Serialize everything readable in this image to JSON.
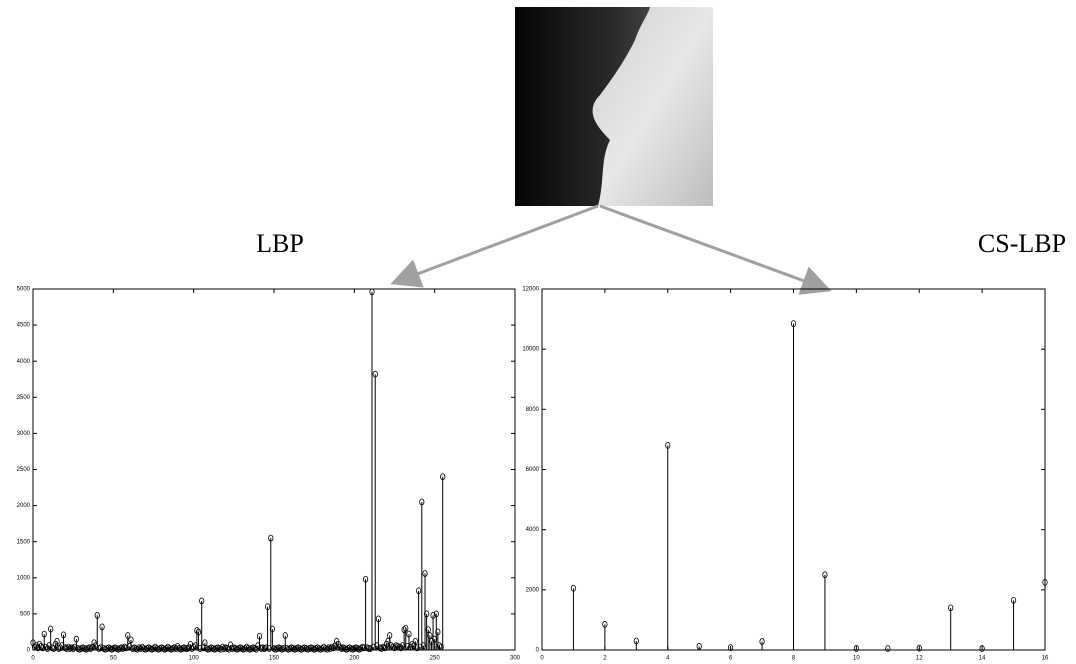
{
  "chart_data": [
    {
      "type": "stem",
      "title": "LBP",
      "color": "#000000",
      "x": [
        0,
        1,
        2,
        3,
        4,
        5,
        6,
        7,
        8,
        9,
        10,
        11,
        12,
        13,
        14,
        15,
        16,
        17,
        18,
        19,
        20,
        21,
        22,
        23,
        24,
        25,
        26,
        27,
        28,
        29,
        30,
        31,
        32,
        33,
        34,
        35,
        36,
        37,
        38,
        39,
        40,
        41,
        42,
        43,
        44,
        45,
        46,
        47,
        48,
        49,
        50,
        51,
        52,
        53,
        54,
        55,
        56,
        57,
        58,
        59,
        60,
        61,
        62,
        63,
        64,
        65,
        66,
        67,
        68,
        69,
        70,
        71,
        72,
        73,
        74,
        75,
        76,
        77,
        78,
        79,
        80,
        81,
        82,
        83,
        84,
        85,
        86,
        87,
        88,
        89,
        90,
        91,
        92,
        93,
        94,
        95,
        96,
        97,
        98,
        99,
        100,
        101,
        102,
        103,
        104,
        105,
        106,
        107,
        108,
        109,
        110,
        111,
        112,
        113,
        114,
        115,
        116,
        117,
        118,
        119,
        120,
        121,
        122,
        123,
        124,
        125,
        126,
        127,
        128,
        129,
        130,
        131,
        132,
        133,
        134,
        135,
        136,
        137,
        138,
        139,
        140,
        141,
        142,
        143,
        144,
        145,
        146,
        147,
        148,
        149,
        150,
        151,
        152,
        153,
        154,
        155,
        156,
        157,
        158,
        159,
        160,
        161,
        162,
        163,
        164,
        165,
        166,
        167,
        168,
        169,
        170,
        171,
        172,
        173,
        174,
        175,
        176,
        177,
        178,
        179,
        180,
        181,
        182,
        183,
        184,
        185,
        186,
        187,
        188,
        189,
        190,
        191,
        192,
        193,
        194,
        195,
        196,
        197,
        198,
        199,
        200,
        201,
        202,
        203,
        204,
        205,
        206,
        207,
        208,
        209,
        210,
        211,
        212,
        213,
        214,
        215,
        216,
        217,
        218,
        219,
        220,
        221,
        222,
        223,
        224,
        225,
        226,
        227,
        228,
        229,
        230,
        231,
        232,
        233,
        234,
        235,
        236,
        237,
        238,
        239,
        240,
        241,
        242,
        243,
        244,
        245,
        246,
        247,
        248,
        249,
        250,
        251,
        252,
        253,
        254,
        255
      ],
      "values": [
        100,
        40,
        60,
        30,
        80,
        50,
        30,
        220,
        40,
        20,
        60,
        290,
        30,
        20,
        80,
        120,
        20,
        30,
        60,
        210,
        30,
        20,
        40,
        20,
        30,
        20,
        40,
        150,
        20,
        10,
        20,
        30,
        20,
        10,
        20,
        30,
        20,
        40,
        100,
        60,
        480,
        20,
        30,
        320,
        20,
        10,
        20,
        30,
        20,
        10,
        20,
        30,
        20,
        10,
        20,
        30,
        20,
        40,
        30,
        200,
        50,
        140,
        20,
        30,
        20,
        10,
        30,
        20,
        40,
        20,
        10,
        20,
        30,
        20,
        10,
        20,
        40,
        20,
        10,
        20,
        30,
        20,
        10,
        20,
        40,
        20,
        10,
        20,
        30,
        20,
        50,
        20,
        10,
        20,
        30,
        20,
        20,
        30,
        80,
        20,
        40,
        60,
        270,
        250,
        20,
        680,
        30,
        100,
        20,
        10,
        20,
        30,
        20,
        10,
        20,
        30,
        20,
        10,
        40,
        20,
        30,
        20,
        10,
        70,
        20,
        30,
        20,
        10,
        20,
        30,
        20,
        10,
        20,
        40,
        20,
        10,
        20,
        30,
        20,
        10,
        60,
        190,
        20,
        30,
        20,
        30,
        600,
        20,
        1550,
        290,
        20,
        10,
        20,
        30,
        20,
        10,
        20,
        200,
        20,
        10,
        20,
        30,
        20,
        10,
        20,
        30,
        20,
        10,
        20,
        30,
        20,
        10,
        20,
        30,
        20,
        10,
        20,
        30,
        20,
        10,
        20,
        40,
        20,
        10,
        30,
        20,
        40,
        30,
        60,
        120,
        80,
        40,
        20,
        30,
        20,
        10,
        20,
        30,
        20,
        10,
        20,
        30,
        20,
        10,
        20,
        40,
        30,
        980,
        30,
        20,
        20,
        4960,
        40,
        3820,
        60,
        430,
        30,
        20,
        40,
        30,
        80,
        120,
        200,
        60,
        40,
        30,
        60,
        50,
        40,
        30,
        60,
        280,
        300,
        50,
        220,
        40,
        80,
        60,
        120,
        30,
        820,
        40,
        2050,
        60,
        1060,
        500,
        280,
        200,
        120,
        480,
        150,
        500,
        250,
        60,
        40,
        2400
      ],
      "xlim": [
        0,
        300
      ],
      "xticks": [
        0,
        50,
        100,
        150,
        200,
        250,
        300
      ],
      "ylim": [
        0,
        5000
      ],
      "yticks": [
        0,
        500,
        1000,
        1500,
        2000,
        2500,
        3000,
        3500,
        4000,
        4500,
        5000
      ]
    },
    {
      "type": "stem",
      "title": "CS-LBP",
      "color": "#000000",
      "x": [
        1,
        2,
        3,
        4,
        5,
        6,
        7,
        8,
        9,
        10,
        11,
        12,
        13,
        14,
        15,
        16
      ],
      "values": [
        2050,
        850,
        300,
        6800,
        120,
        80,
        280,
        10850,
        2500,
        50,
        50,
        60,
        1400,
        50,
        1650,
        2250
      ],
      "xlim": [
        0,
        16
      ],
      "xticks": [
        0,
        2,
        4,
        6,
        8,
        10,
        12,
        14,
        16
      ],
      "ylim": [
        0,
        12000
      ],
      "yticks": [
        0,
        2000,
        4000,
        6000,
        8000,
        10000,
        12000
      ]
    }
  ]
}
